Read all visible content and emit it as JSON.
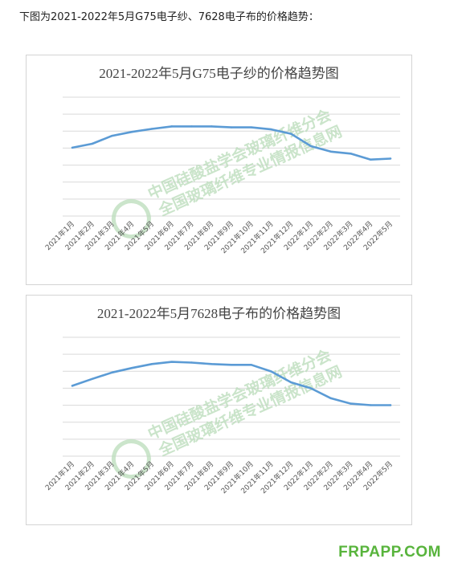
{
  "intro_text": "下图为2021-2022年5月G75电子纱、7628电子布的价格趋势：",
  "watermark": {
    "line1": "中国硅酸盐学会玻璃纤维分会",
    "line2": "全国玻璃纤维专业情报信息网"
  },
  "footer_brand": "FRPAPP.COM",
  "colors": {
    "line": "#5b9bd5",
    "grid": "#d9d9d9",
    "watermark": "#b9dcb9",
    "brand": "#58b43c"
  },
  "chart_data": [
    {
      "type": "line",
      "title": "2021-2022年5月G75电子纱的价格趋势图",
      "categories": [
        "2021年1月",
        "2021年2月",
        "2021年3月",
        "2021年4月",
        "2021年5月",
        "2021年6月",
        "2021年7月",
        "2021年8月",
        "2021年9月",
        "2021年10月",
        "2021年11月",
        "2021年12月",
        "2022年1月",
        "2022年2月",
        "2022年3月",
        "2022年4月",
        "2022年5月"
      ],
      "values": [
        6.9,
        7.3,
        8.1,
        8.5,
        8.8,
        9.05,
        9.05,
        9.05,
        8.95,
        8.95,
        8.75,
        8.3,
        7.05,
        6.5,
        6.3,
        5.7,
        5.8
      ],
      "ylim": [
        0,
        12
      ],
      "grid": true,
      "legend": "none"
    },
    {
      "type": "line",
      "title": "2021-2022年5月7628电子布的价格趋势图",
      "categories": [
        "2021年1月",
        "2021年2月",
        "2021年3月",
        "2021年4月",
        "2021年5月",
        "2021年6月",
        "2021年7月",
        "2021年8月",
        "2021年9月",
        "2021年10月",
        "2021年11月",
        "2021年12月",
        "2022年1月",
        "2022年2月",
        "2022年3月",
        "2022年4月",
        "2022年5月"
      ],
      "values": [
        7.1,
        7.8,
        8.45,
        8.9,
        9.3,
        9.52,
        9.45,
        9.3,
        9.22,
        9.22,
        8.55,
        7.45,
        6.85,
        5.85,
        5.3,
        5.15,
        5.15
      ],
      "ylim": [
        0,
        12
      ],
      "grid": true,
      "legend": "none"
    }
  ]
}
